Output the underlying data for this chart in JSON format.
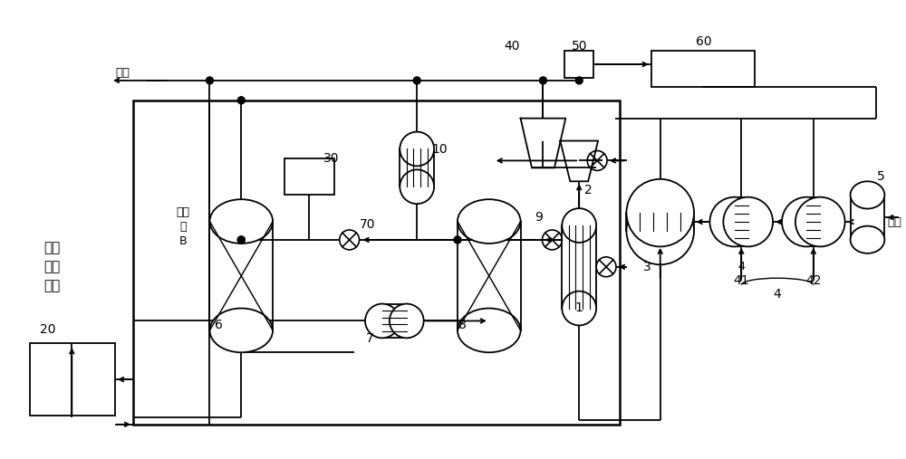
{
  "bg": "#ffffff",
  "lw": 1.3,
  "labels": {
    "syngas": "合成\n氨混\n合气",
    "drain": "驰放",
    "liq_nh3": "液氨",
    "circ": "循环\n气\nB"
  }
}
